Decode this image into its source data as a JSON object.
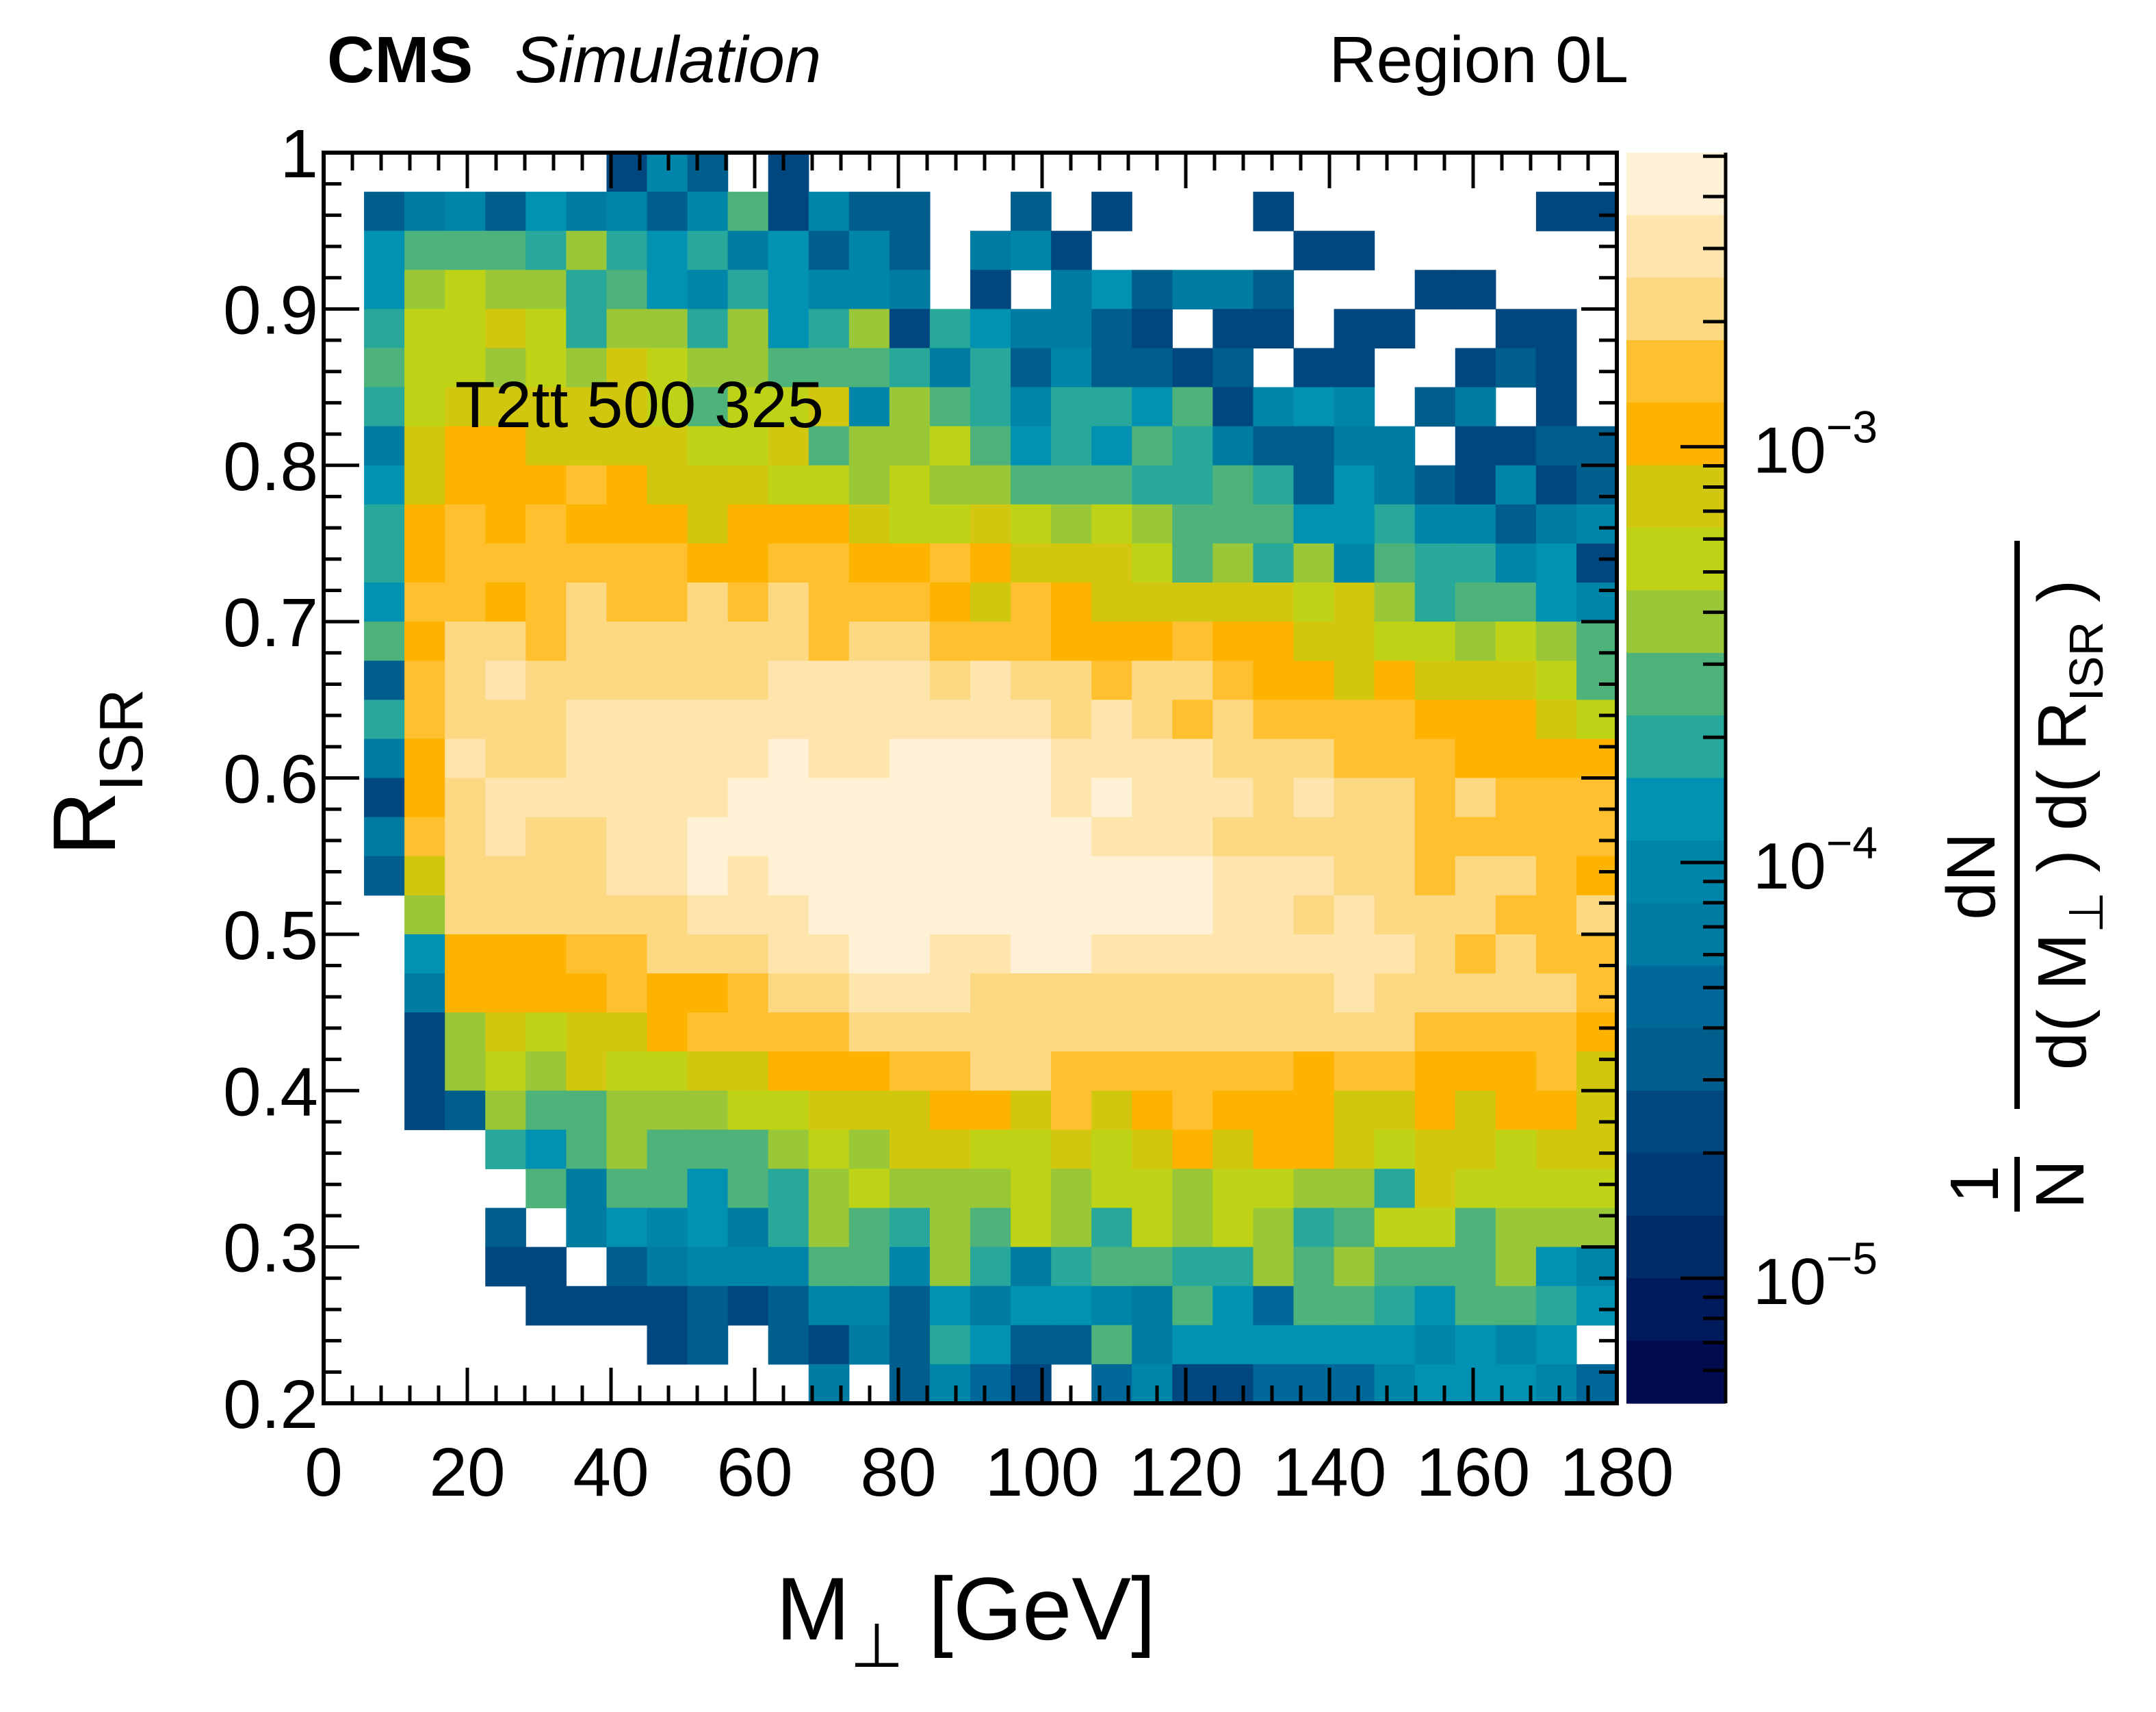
{
  "chart_data": {
    "type": "heatmap",
    "header_left_bold": "CMS",
    "header_left_italic": "Simulation",
    "header_right": "Region 0L",
    "annotation": "T2tt 500 325",
    "xlabel": {
      "main": "M",
      "sub": "⊥",
      "unit": " [GeV]"
    },
    "ylabel": {
      "main": "R",
      "sub": "ISR"
    },
    "zlabel": {
      "numerator_left": "1",
      "denominator_left": "N",
      "numerator": "dN",
      "denominator": [
        "d( M",
        "⊥",
        " ) d( R",
        "ISR",
        " )"
      ]
    },
    "xlim": [
      0,
      180
    ],
    "ylim": [
      0.2,
      1.0
    ],
    "x_bins": 32,
    "y_bins": 32,
    "x_ticks": [
      0,
      20,
      40,
      60,
      80,
      100,
      120,
      140,
      160,
      180
    ],
    "x_tick_labels": [
      "0",
      "20",
      "40",
      "60",
      "80",
      "100",
      "120",
      "140",
      "160",
      "180"
    ],
    "y_ticks": [
      0.2,
      0.3,
      0.4,
      0.5,
      0.6,
      0.7,
      0.8,
      0.9,
      1.0
    ],
    "y_tick_labels": [
      "0.2",
      "0.3",
      "0.4",
      "0.5",
      "0.6",
      "0.7",
      "0.8",
      "0.9",
      "1"
    ],
    "z_scale": "log",
    "zlim": [
      5e-06,
      0.0051
    ],
    "z_ticks": [
      0.001,
      0.0001,
      1e-05
    ],
    "z_tick_labels": [
      {
        "base": "10",
        "exp": "−3"
      },
      {
        "base": "10",
        "exp": "−4"
      },
      {
        "base": "10",
        "exp": "−5"
      }
    ],
    "palette": [
      "#FFF1D6",
      "#FEE5AD",
      "#FDD882",
      "#FEC02E",
      "#FDB300",
      "#D2C70F",
      "#BED316",
      "#99C738",
      "#4EB37A",
      "#27A89A",
      "#0191B3",
      "#0085AA",
      "#007BA2",
      "#006898",
      "#005E8D",
      "#00477F",
      "#003A75",
      "#002C68",
      "#001B5D",
      "#000B50"
    ],
    "z_rows_order": "top row = highest R_ISR bin (0.975-1.0); columns left to right from M=0",
    "z_codes_legend": "values are bin contents (1/N dN/dM dR); '.' = empty",
    "levels": {
      "A": 0.0043,
      "B": 0.00305,
      "C": 0.00216,
      "D": 0.00152,
      "E": 0.00108,
      "F": 0.00076,
      "G": 0.00054,
      "H": 0.00038,
      "I": 0.00027,
      "J": 0.00019,
      "K": 0.000135,
      "L": 9.5e-05,
      "M": 6.7e-05,
      "N": 4.75e-05,
      "O": 3.4e-05,
      "P": 2.4e-05
    },
    "z": [
      ".......PLO.P....................",
      ".OMLOKMLOLIPLOO..O.P...P......PP",
      ".KIIIJHJKJMKOLO.MLP.....PP......",
      ".KHGHHJIKLJKLLM.P.MKOMMO...PP...",
      ".JGGFGJHHJHKJHPJKMMOP.PP.PP..PP.",
      ".IGGHGHFGHHIIIJMJOLOOPO.PP..POP.",
      ".JGFFFFFGIGGFLHIJLJJKIPLKL.OM.P.",
      ".MFEEFFFFGGFIHHGIKJKIJMOOMM.PPOO",
      ".KFEEEDEFFFGGHGHHIIIJJIJOKMOPLPO",
      ".JEDEDEEEFEEEFGGFGHGHIIIKKJLLOML",
      ".JEDDDDDDEEDDEEDEFFFGIHJHLIJJLKP",
      ".KDDEDCDDCDCDDDEFDEFFFFFGFHJIIKL",
      ".IECCDCCCCCCDCCDDDEEEDEEFFGGHGHI",
      ".ODCBCCCCCCBBBBCBCCDCCDEEFEFFFGI",
      ".JDCCCBBBBBBBBBBBBCBCDCDDDDEEEFG",
      ".MEBCCBBBBBABBAAAABBBBCCCDDDEEEE",
      ".PECBBBBBBAAAAAAAABABBBCBCCDCDDD",
      ".MDCBCCBBAAAAAAAAAABBBCCCCCDDDDD",
      ".OFCCCCBBABAAAAAAAAAAABBBCCDCCDE",
      "..HCCCCCCBBBAAAAAAAAAABBCBCCCDDC",
      "..KEEEDDCCCBBAABBAABBBBBBBBCDCDD",
      "..MEEEEDEEDCCBBBCCCCCCCCCBCCCCCD",
      "..PHFGFFEDDDDCCCCCCCCCCCCCCDDDDE",
      "..PHGHFGGFFEEEDDCCDDDDDDEDDEEEDF",
      "..POHIIHHHGGFFFEEFDFEDEEEFFEFEEF",
      "....JKIHIIIHGHFFGGFGFEFEEFGFFGFF",
      ".....IMIIKIJHGHHHGHGGHGGHHJFGGGG",
      "....O.MKLKMJHIJHIGHJGHGHJIGGIHHH",
      "....PP.OMLLLIILHJMJIIJJHIHIIIHKL",
      ".....PPPPOPOLLOKMKKLMIKNIIJKIIJK",
      "........PO.OPMOJKOOIMKKKKKKLKLK.",
      "............M.OLNP.NLPPNNNLKKKLN"
    ]
  }
}
